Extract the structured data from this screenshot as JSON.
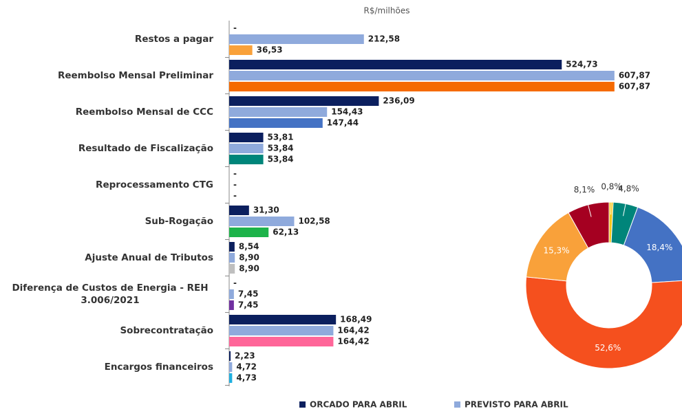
{
  "chart_data": [
    {
      "type": "hbar",
      "unit_label": "R$/milhões",
      "categories": [
        "Restos a pagar",
        "Reembolso Mensal Preliminar",
        "Reembolso Mensal de CCC",
        "Resultado de Fiscalização",
        "Reprocessamento CTG",
        "Sub-Rogação",
        "Ajuste Anual de Tributos",
        "Diferença de Custos de Energia - REH 3.006/2021",
        "Sobrecontratação",
        "Encargos financeiros"
      ],
      "xlim": [
        0,
        620
      ],
      "series": [
        {
          "name": "ORCADO PARA ABRIL",
          "color": "#0b1f5e",
          "values": [
            null,
            524.73,
            236.09,
            53.81,
            null,
            31.3,
            8.54,
            null,
            168.49,
            2.23
          ],
          "value_labels": [
            "-",
            "524,73",
            "236,09",
            "53,81",
            "-",
            "31,30",
            "8,54",
            "-",
            "168,49",
            "2,23"
          ]
        },
        {
          "name": "PREVISTO PARA ABRIL",
          "color": "#8faadc",
          "values": [
            212.58,
            607.87,
            154.43,
            53.84,
            null,
            102.58,
            8.9,
            7.45,
            164.42,
            4.72
          ],
          "value_labels": [
            "212,58",
            "607,87",
            "154,43",
            "53,84",
            "-",
            "102,58",
            "8,90",
            "7,45",
            "164,42",
            "4,72"
          ]
        },
        {
          "colors": [
            "#f9a13a",
            "#f56a00",
            "#4472c4",
            "#00857a",
            null,
            "#1db34a",
            "#bfbfbf",
            "#7030a0",
            "#ff6699",
            "#1fb0e0"
          ],
          "values": [
            36.53,
            607.87,
            147.44,
            53.84,
            null,
            62.13,
            8.9,
            7.45,
            164.42,
            4.73
          ],
          "value_labels": [
            "36,53",
            "607,87",
            "147,44",
            "53,84",
            "-",
            "62,13",
            "8,90",
            "7,45",
            "164,42",
            "4,73"
          ]
        }
      ]
    },
    {
      "type": "donut",
      "values": [
        0.8,
        4.8,
        18.4,
        52.6,
        15.3,
        8.1
      ],
      "value_labels": [
        "0,8%",
        "4,8%",
        "18,4%",
        "52,6%",
        "15,3%",
        "8,1%"
      ],
      "colors": [
        "#f5c518",
        "#00857a",
        "#4472c4",
        "#f5501e",
        "#f9a13a",
        "#a50021"
      ]
    }
  ]
}
